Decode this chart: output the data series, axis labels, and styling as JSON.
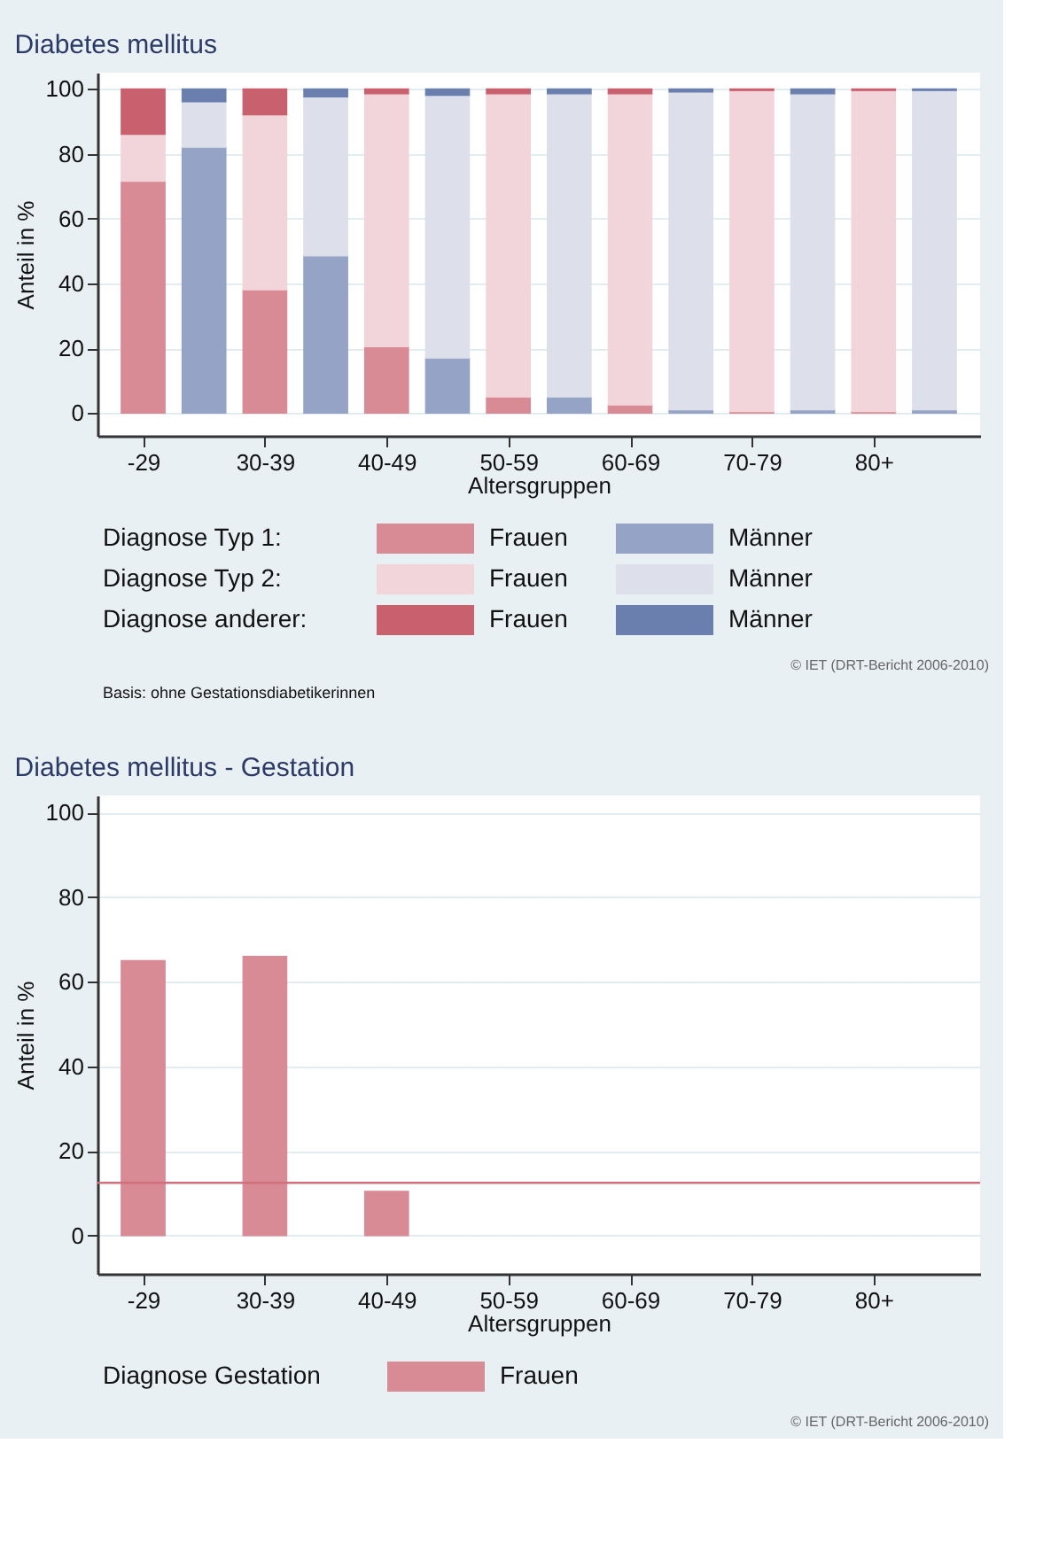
{
  "chart_data": [
    {
      "type": "bar",
      "title": "Diabetes mellitus",
      "xlabel": "Altersgruppen",
      "ylabel": "Anteil in %",
      "stacked": true,
      "categories": [
        "-29",
        null,
        "30-39",
        null,
        "40-49",
        null,
        "50-59",
        null,
        "60-69",
        null,
        "70-79",
        null,
        "80+",
        null
      ],
      "ylim": [
        -7,
        105
      ],
      "yticks": [
        0,
        20,
        40,
        60,
        80,
        100
      ],
      "grid": "y",
      "legend": "bottom",
      "series": [
        {
          "name": "Frauen",
          "color": "#d88a95",
          "values": [
            71.5,
            null,
            38,
            null,
            20.5,
            null,
            5,
            null,
            2.5,
            null,
            0.5,
            null,
            0.5,
            null
          ]
        },
        {
          "name": "Frauen",
          "color": "#f2d5da",
          "values": [
            14.5,
            null,
            54,
            null,
            78,
            null,
            93.5,
            null,
            96,
            null,
            99,
            null,
            99,
            null
          ]
        },
        {
          "name": "Frauen",
          "color": "#c8606e",
          "values": [
            14,
            null,
            8,
            null,
            1.5,
            null,
            1.5,
            null,
            1.5,
            null,
            0.5,
            null,
            0.5,
            null
          ]
        },
        {
          "name": "Männer",
          "color": "#94a3c6",
          "values": [
            null,
            82,
            null,
            48.5,
            null,
            17,
            null,
            5,
            null,
            1,
            null,
            1,
            null,
            1
          ]
        },
        {
          "name": "Männer",
          "color": "#dde0ea",
          "values": [
            null,
            14,
            null,
            49,
            null,
            81,
            null,
            93.5,
            null,
            98,
            null,
            97.5,
            null,
            98.5
          ]
        },
        {
          "name": "Männer",
          "color": "#6a7fae",
          "values": [
            null,
            4,
            null,
            2.5,
            null,
            2,
            null,
            1.5,
            null,
            1,
            null,
            1.5,
            null,
            0.5
          ]
        }
      ],
      "annotations": [
        "Diagnose Typ 1:",
        "Diagnose Typ 2:",
        "Diagnose anderer:",
        "© IET (DRT-Bericht 2006-2010)",
        "Basis: ohne Gestationsdiabetikerinnen"
      ]
    },
    {
      "type": "bar",
      "title": "Diabetes mellitus - Gestation",
      "xlabel": "Altersgruppen",
      "ylabel": "Anteil in %",
      "legend_title": "Diagnose Gestation",
      "categories": [
        "-29",
        null,
        "30-39",
        null,
        "40-49",
        null,
        "50-59",
        null,
        "60-69",
        null,
        "70-79",
        null,
        "80+",
        null
      ],
      "ylim": [
        -9,
        104
      ],
      "yticks": [
        0,
        20,
        40,
        60,
        80,
        100
      ],
      "grid": "y",
      "legend": "bottom",
      "series": [
        {
          "name": "Frauen",
          "color": "#d88a95",
          "values": [
            65,
            null,
            66,
            null,
            10.5,
            null,
            null,
            null,
            null,
            null,
            null,
            null,
            null,
            null
          ]
        }
      ],
      "ref_lines": [
        {
          "axis": "y",
          "value": 12.5,
          "color": "#d0707c"
        }
      ],
      "annotations": [
        "© IET (DRT-Bericht 2006-2010)"
      ]
    }
  ]
}
